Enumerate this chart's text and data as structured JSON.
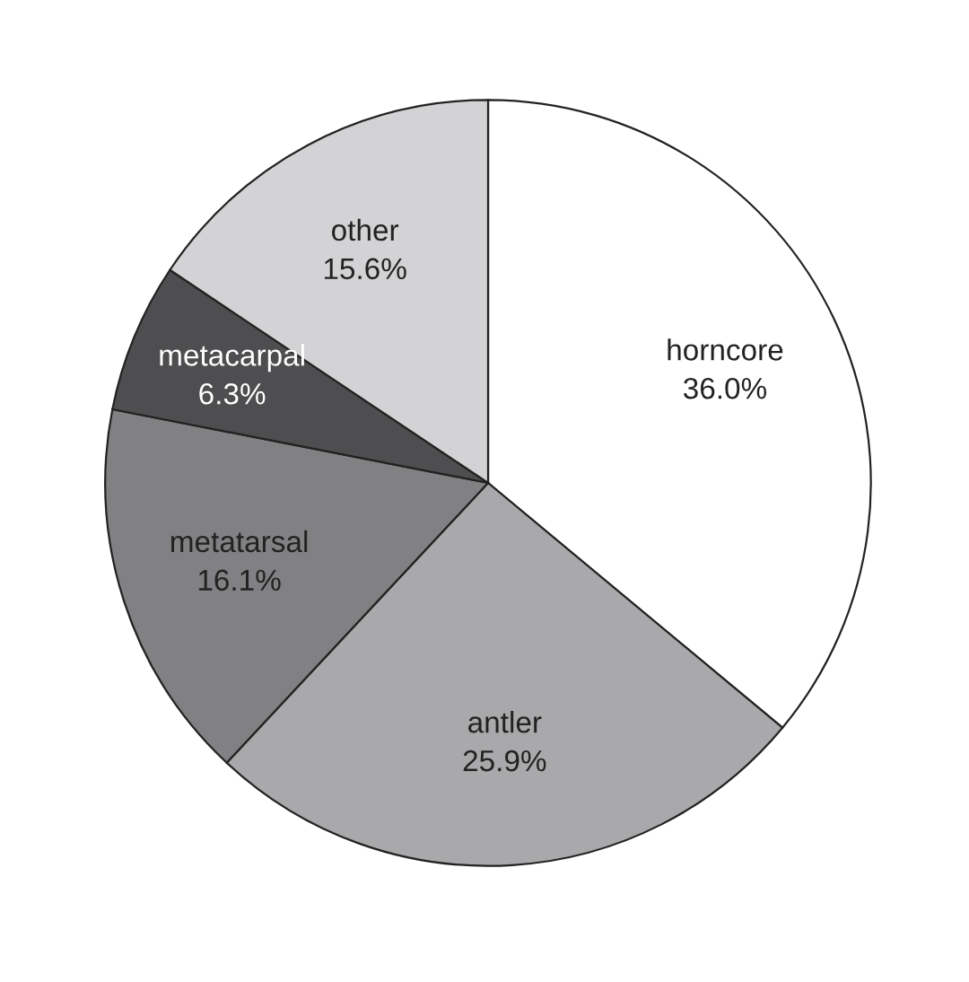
{
  "chart_data": {
    "type": "pie",
    "categories": [
      "horncore",
      "antler",
      "metatarsal",
      "metacarpal",
      "other"
    ],
    "values": [
      36.0,
      25.9,
      16.1,
      6.3,
      15.6
    ],
    "value_labels": [
      "36.0%",
      "25.9%",
      "16.1%",
      "6.3%",
      "15.6%"
    ],
    "colors": [
      "#ffffff",
      "#a9a9ab",
      "#818184",
      "#4e4e50",
      "#d3d3d5"
    ]
  }
}
